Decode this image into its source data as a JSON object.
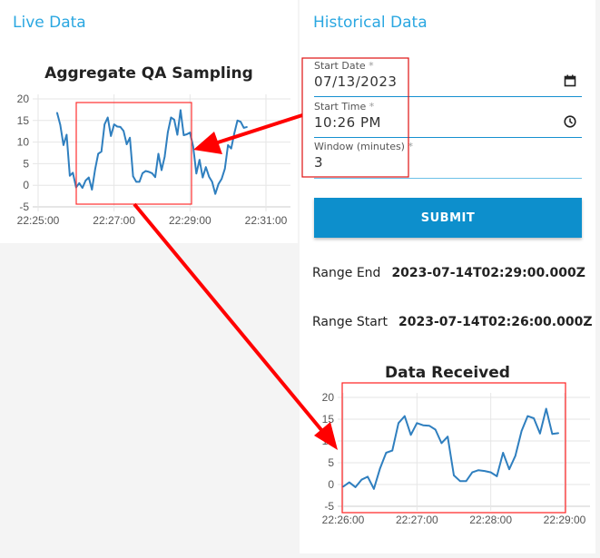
{
  "live": {
    "heading": "Live Data",
    "chart_title": "Aggregate QA Sampling"
  },
  "historical": {
    "heading": "Historical Data",
    "fields": [
      {
        "label": "Start Date",
        "required": "*",
        "value": "07/13/2023",
        "icon": "calendar-icon"
      },
      {
        "label": "Start Time",
        "required": "*",
        "value": "10:26 PM",
        "icon": "clock-icon"
      },
      {
        "label": "Window (minutes)",
        "required": "*",
        "value": "3"
      }
    ],
    "submit_label": "SUBMIT",
    "range_end_label": "Range End",
    "range_end_value": "2023-07-14T02:29:00.000Z",
    "range_start_label": "Range Start",
    "range_start_value": "2023-07-14T02:26:00.000Z",
    "chart_title": "Data Received"
  },
  "colors": {
    "accent": "#2aa7e1",
    "button": "#0d8fcc",
    "line": "#2f7fbf",
    "annotation": "#ff0000"
  },
  "chart_data": [
    {
      "type": "line",
      "title": "Aggregate QA Sampling",
      "xlim": [
        "22:25:00",
        "22:31:00"
      ],
      "ylim": [
        -5,
        20
      ],
      "xticks": [
        "22:25:00",
        "22:27:00",
        "22:29:00",
        "22:31:00"
      ],
      "yticks": [
        20,
        15,
        10,
        5,
        0,
        -5
      ],
      "grid": true,
      "x": [
        "22:25:30",
        "22:25:35",
        "22:25:40",
        "22:25:45",
        "22:25:50",
        "22:25:55",
        "22:26:00",
        "22:26:05",
        "22:26:10",
        "22:26:15",
        "22:26:20",
        "22:26:25",
        "22:26:30",
        "22:26:35",
        "22:26:40",
        "22:26:45",
        "22:26:50",
        "22:26:55",
        "22:27:00",
        "22:27:05",
        "22:27:10",
        "22:27:15",
        "22:27:20",
        "22:27:25",
        "22:27:30",
        "22:27:35",
        "22:27:40",
        "22:27:45",
        "22:27:50",
        "22:27:55",
        "22:28:00",
        "22:28:05",
        "22:28:10",
        "22:28:15",
        "22:28:20",
        "22:28:25",
        "22:28:30",
        "22:28:35",
        "22:28:40",
        "22:28:45",
        "22:28:50",
        "22:28:55",
        "22:29:00",
        "22:29:05",
        "22:29:10",
        "22:29:15",
        "22:29:20",
        "22:29:25",
        "22:29:30",
        "22:29:35",
        "22:29:40",
        "22:29:45",
        "22:29:50",
        "22:29:55",
        "22:30:00",
        "22:30:05",
        "22:30:10",
        "22:30:15",
        "22:30:20",
        "22:30:25",
        "22:30:30"
      ],
      "y": [
        16.8,
        14,
        9.3,
        11.7,
        2.2,
        2.9,
        -0.5,
        0.5,
        -0.6,
        1.1,
        1.8,
        -1,
        3.7,
        7.3,
        7.8,
        14.1,
        15.7,
        11.4,
        14.1,
        13.6,
        13.5,
        12.6,
        9.5,
        11,
        2.1,
        0.8,
        0.8,
        2.8,
        3.3,
        3.1,
        2.8,
        1.9,
        7.3,
        3.5,
        6.6,
        12.3,
        15.7,
        15.2,
        11.7,
        17.4,
        11.6,
        11.8,
        12.2,
        9,
        2.7,
        5.9,
        1.8,
        4.2,
        2,
        0.8,
        -2,
        0.3,
        1.5,
        3.8,
        9.3,
        8.5,
        12,
        15,
        14.7,
        13.3,
        13.5
      ]
    },
    {
      "type": "line",
      "title": "Data Received",
      "xlim": [
        "22:26:00",
        "22:29:00"
      ],
      "ylim": [
        -5,
        20
      ],
      "xticks": [
        "22:26:00",
        "22:27:00",
        "22:28:00",
        "22:29:00"
      ],
      "yticks": [
        20,
        15,
        10,
        5,
        0,
        -5
      ],
      "grid": true,
      "x": [
        "22:26:00",
        "22:26:05",
        "22:26:10",
        "22:26:15",
        "22:26:20",
        "22:26:25",
        "22:26:30",
        "22:26:35",
        "22:26:40",
        "22:26:45",
        "22:26:50",
        "22:26:55",
        "22:27:00",
        "22:27:05",
        "22:27:10",
        "22:27:15",
        "22:27:20",
        "22:27:25",
        "22:27:30",
        "22:27:35",
        "22:27:40",
        "22:27:45",
        "22:27:50",
        "22:27:55",
        "22:28:00",
        "22:28:05",
        "22:28:10",
        "22:28:15",
        "22:28:20",
        "22:28:25",
        "22:28:30",
        "22:28:35",
        "22:28:40",
        "22:28:45",
        "22:28:50",
        "22:28:55"
      ],
      "y": [
        -0.5,
        0.5,
        -0.6,
        1.1,
        1.8,
        -1,
        3.7,
        7.3,
        7.8,
        14.1,
        15.7,
        11.4,
        14.1,
        13.6,
        13.5,
        12.6,
        9.5,
        11,
        2.1,
        0.8,
        0.8,
        2.8,
        3.3,
        3.1,
        2.8,
        1.9,
        7.3,
        3.5,
        6.6,
        12.3,
        15.7,
        15.2,
        11.7,
        17.4,
        11.6,
        11.8
      ]
    }
  ]
}
